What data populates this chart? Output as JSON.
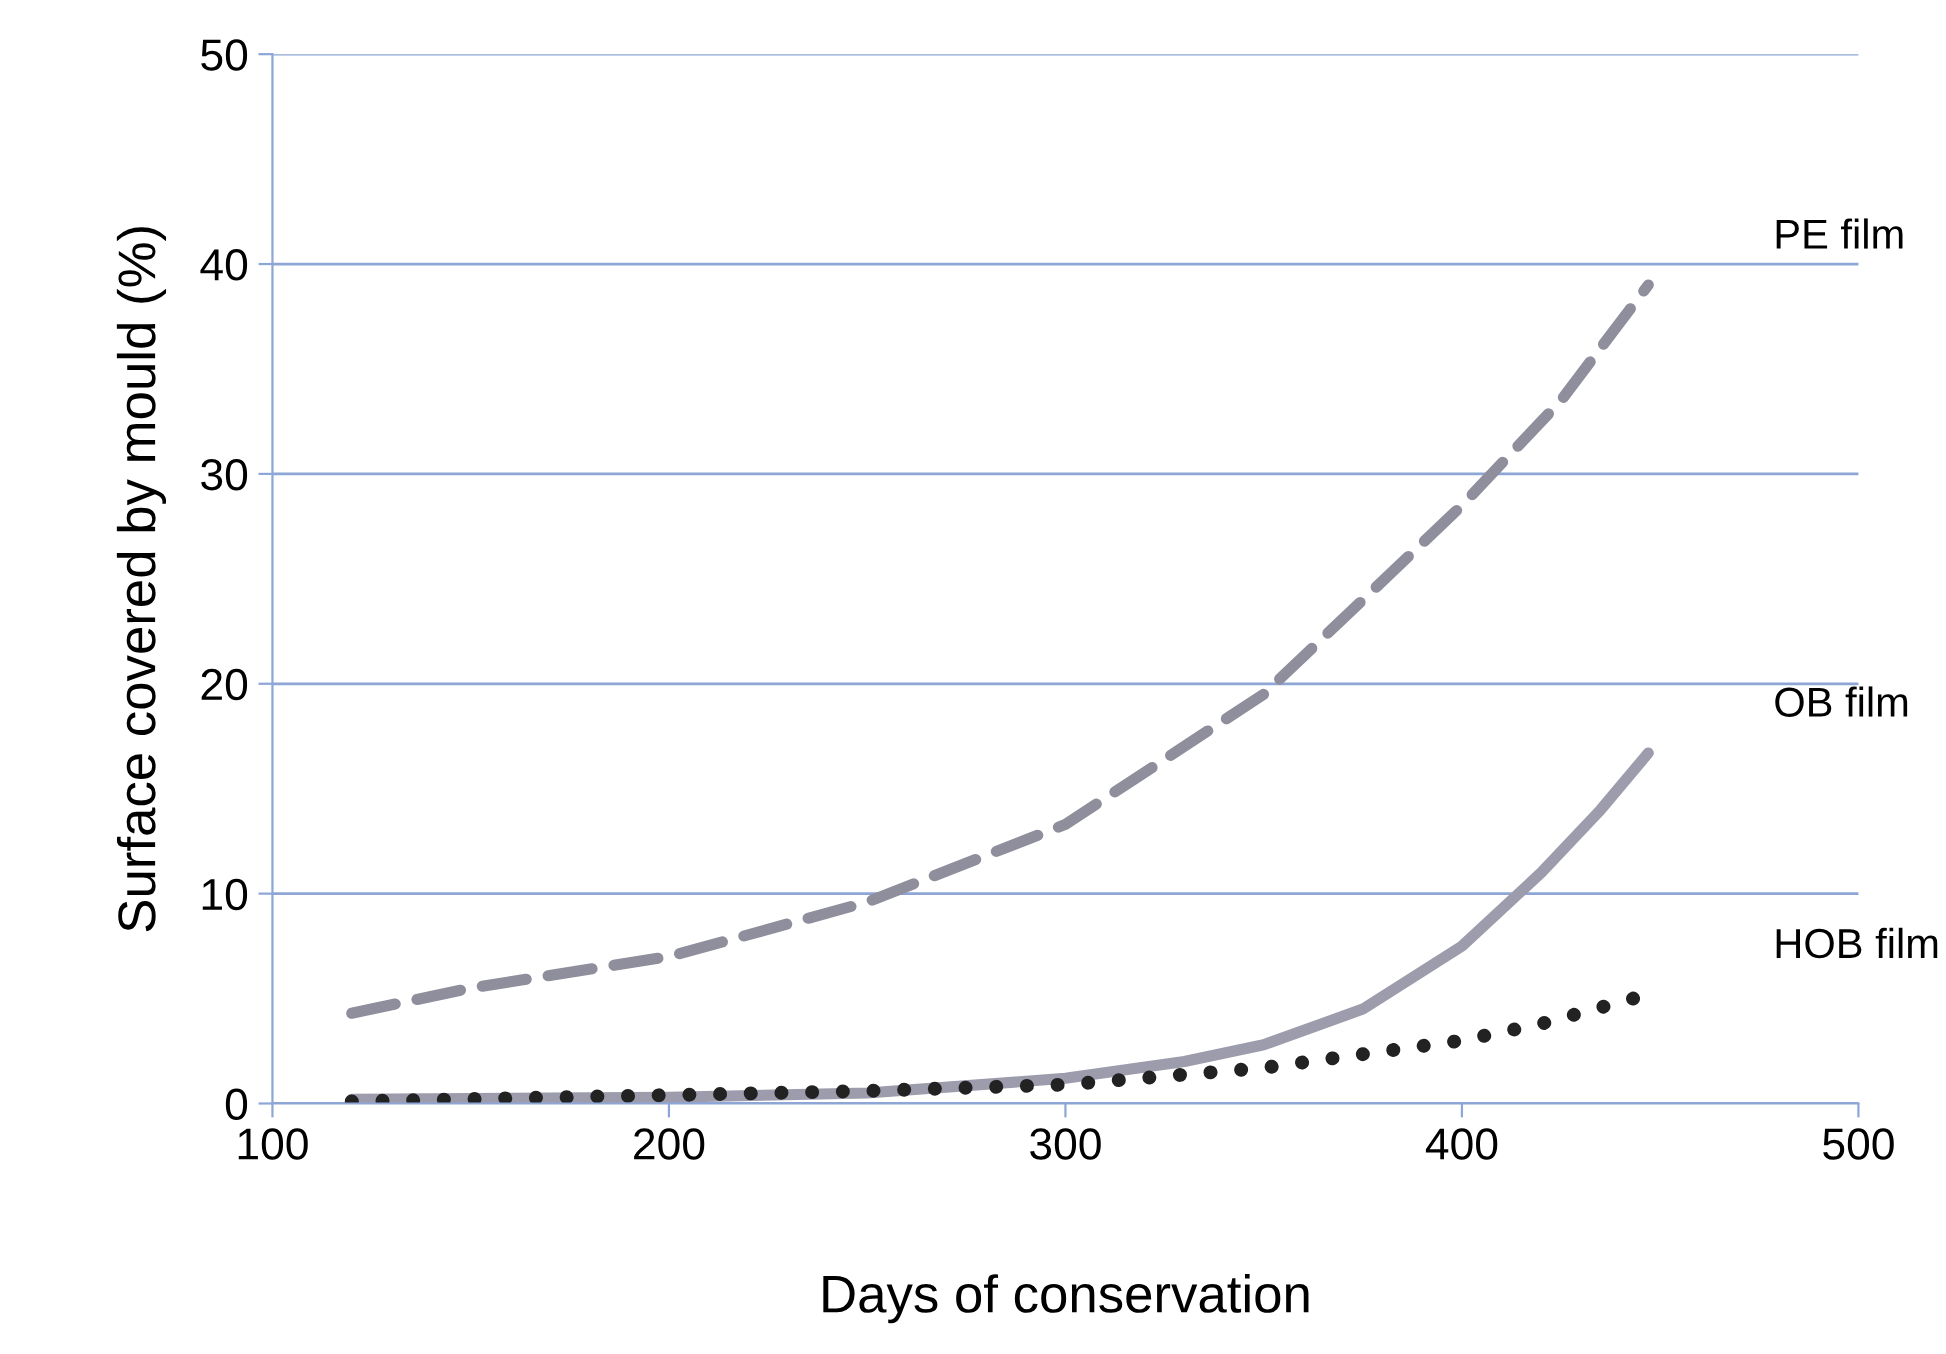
{
  "chart_data": {
    "type": "line",
    "xlabel": "Days of conservation",
    "ylabel": "Surface covered by mould (%)",
    "xlim": [
      100,
      500
    ],
    "xticks": [
      100,
      200,
      300,
      400,
      500
    ],
    "ylim": [
      0,
      50
    ],
    "yticks": [
      0,
      10,
      20,
      30,
      40,
      50
    ],
    "grid": "y",
    "legend": false,
    "series": [
      {
        "name": "PE film",
        "color": "#8e8e9c",
        "line_style": "dashed",
        "x": [
          120,
          150,
          200,
          250,
          300,
          350,
          400,
          425,
          447
        ],
        "values": [
          4.3,
          5.5,
          7.0,
          9.6,
          13.3,
          19.5,
          28.5,
          33.5,
          39
        ]
      },
      {
        "name": "OB film",
        "color": "#9c9cac",
        "line_style": "solid",
        "x": [
          120,
          200,
          250,
          300,
          330,
          350,
          375,
          400,
          420,
          435,
          447
        ],
        "values": [
          0.2,
          0.3,
          0.5,
          1.2,
          2,
          2.8,
          4.5,
          7.5,
          11,
          14,
          16.7
        ]
      },
      {
        "name": "HOB film",
        "color": "#222222",
        "line_style": "dotted",
        "x": [
          120,
          200,
          250,
          300,
          350,
          400,
          420,
          447
        ],
        "values": [
          0.1,
          0.4,
          0.6,
          0.9,
          1.7,
          3,
          3.8,
          5.2
        ]
      }
    ]
  }
}
